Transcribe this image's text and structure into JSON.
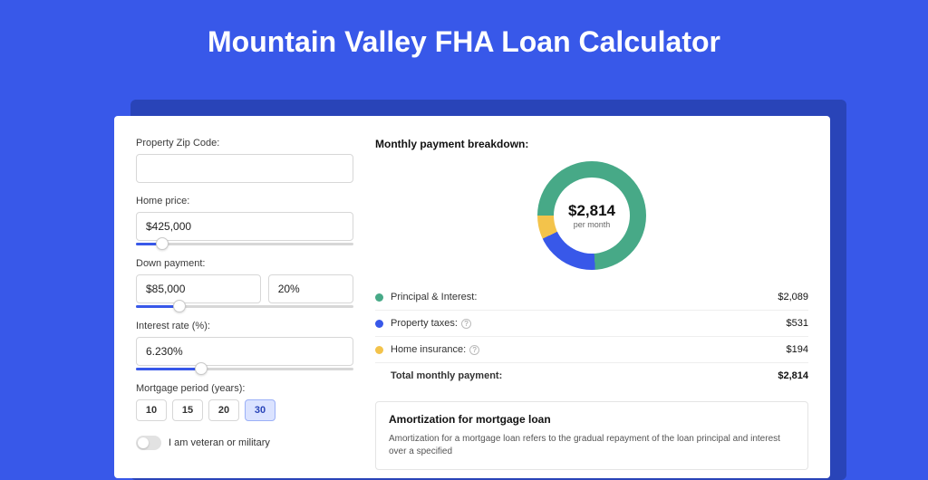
{
  "page": {
    "title": "Mountain Valley FHA Loan Calculator",
    "bg_color": "#3858e9",
    "shadow_color": "#2944b8"
  },
  "inputs": {
    "zip_label": "Property Zip Code:",
    "zip_value": "",
    "home_price_label": "Home price:",
    "home_price_value": "$425,000",
    "home_price_slider_pct": 12,
    "down_payment_label": "Down payment:",
    "down_payment_value": "$85,000",
    "down_payment_pct": "20%",
    "down_payment_slider_pct": 20,
    "rate_label": "Interest rate (%):",
    "rate_value": "6.230%",
    "rate_slider_pct": 30,
    "period_label": "Mortgage period (years):",
    "periods": [
      "10",
      "15",
      "20",
      "30"
    ],
    "period_active_index": 3,
    "veteran_label": "I am veteran or military",
    "veteran_on": false
  },
  "breakdown": {
    "title": "Monthly payment breakdown:",
    "donut": {
      "amount": "$2,814",
      "sub": "per month",
      "segments": [
        {
          "label": "Principal & Interest",
          "color": "#47a987",
          "pct": 74
        },
        {
          "label": "Property taxes",
          "color": "#3858e9",
          "pct": 19
        },
        {
          "label": "Home insurance",
          "color": "#f3c34b",
          "pct": 7
        }
      ]
    },
    "rows": [
      {
        "label": "Principal & Interest:",
        "color": "#47a987",
        "value": "$2,089",
        "info": false
      },
      {
        "label": "Property taxes:",
        "color": "#3858e9",
        "value": "$531",
        "info": true
      },
      {
        "label": "Home insurance:",
        "color": "#f3c34b",
        "value": "$194",
        "info": true
      }
    ],
    "total_label": "Total monthly payment:",
    "total_value": "$2,814"
  },
  "amort": {
    "title": "Amortization for mortgage loan",
    "text": "Amortization for a mortgage loan refers to the gradual repayment of the loan principal and interest over a specified"
  }
}
